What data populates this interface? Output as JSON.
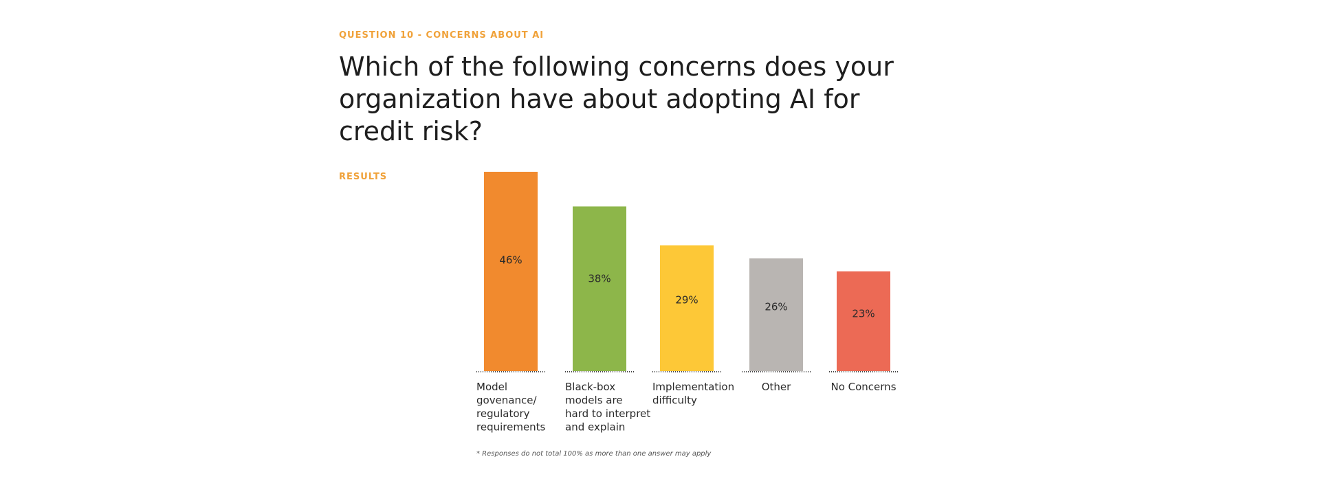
{
  "header": {
    "kicker": "QUESTION 10 - CONCERNS ABOUT AI",
    "question": "Which of the following concerns does your organization have about adopting AI for credit risk?"
  },
  "results_label": "RESULTS",
  "footnote": "* Responses do not total 100% as more than one answer may apply",
  "colors": {
    "accent": "#f0a23a",
    "bar_colors": [
      "#f18a2e",
      "#8db64a",
      "#fdc837",
      "#b9b5b2",
      "#ec6a55"
    ]
  },
  "chart_data": {
    "type": "bar",
    "categories": [
      [
        "Model",
        "govenance/",
        "regulatory",
        "requirements"
      ],
      [
        "Black-box",
        "models are",
        "hard to interpret",
        "and explain"
      ],
      [
        "Implementation",
        "difficulty"
      ],
      [
        "Other"
      ],
      [
        "No Concerns"
      ]
    ],
    "values": [
      46,
      38,
      29,
      26,
      23
    ],
    "value_labels": [
      "46%",
      "38%",
      "29%",
      "26%",
      "23%"
    ],
    "title": "",
    "xlabel": "",
    "ylabel": "",
    "ylim": [
      0,
      46
    ],
    "grid": false,
    "legend": "none"
  }
}
